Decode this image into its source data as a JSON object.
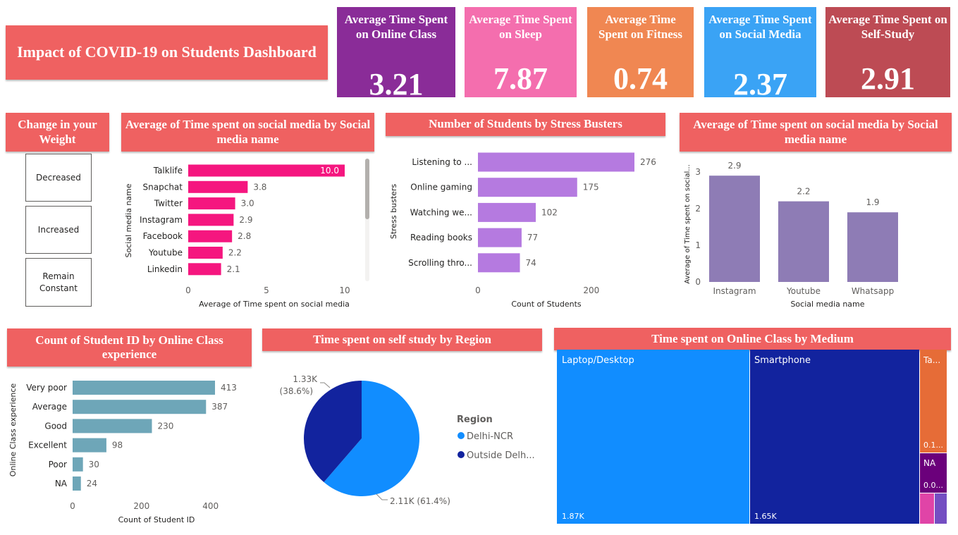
{
  "header": {
    "title": "Impact of COVID-19 on Students Dashboard"
  },
  "kpis": [
    {
      "label": "Average Time Spent on Online Class",
      "value": "3.21",
      "color": "#8a2c98"
    },
    {
      "label": "Average Time Spent on Sleep",
      "value": "7.87",
      "color": "#f46eae"
    },
    {
      "label": "Average Time Spent on Fitness",
      "value": "0.74",
      "color": "#f08752"
    },
    {
      "label": "Average Time Spent on Social Media",
      "value": "2.37",
      "color": "#3aa3f5"
    },
    {
      "label": "Average Time Spent on Self-Study",
      "value": "2.91",
      "color": "#bd4b54"
    }
  ],
  "weight_slicer": {
    "title": "Change in your Weight",
    "options": [
      "Decreased",
      "Increased",
      "Remain Constant"
    ]
  },
  "titles": {
    "social_h": "Average of Time spent on social media by Social media name",
    "stress": "Number of Students by Stress Busters",
    "social_v": "Average of Time spent on social media by Social media name",
    "online_exp": "Count of Student ID by Online Class experience",
    "self_study": "Time spent on self study by Region",
    "medium": "Time spent on Online Class by Medium"
  },
  "colors": {
    "title_bar": "#ef6161",
    "social_bar": "#f5167f",
    "stress_bar": "#b57ae0",
    "social_col": "#8e7cb5",
    "exp_bar": "#6ea6b8",
    "pie_delhi": "#118dff",
    "pie_outside": "#12239e",
    "tm_laptop": "#118dff",
    "tm_phone": "#12239e",
    "tm_tablet": "#e66c37",
    "tm_na": "#6b007b",
    "tm_pink": "#e044a7",
    "tm_purple": "#744ec2"
  },
  "chart_data": [
    {
      "id": "social_h",
      "type": "bar",
      "orientation": "horizontal",
      "title": "Average of Time spent on social media by Social media name",
      "categories": [
        "Talklife",
        "Snapchat",
        "Twitter",
        "Instagram",
        "Facebook",
        "Youtube",
        "Linkedin"
      ],
      "values": [
        10.0,
        3.8,
        3.0,
        2.9,
        2.8,
        2.2,
        2.1
      ],
      "data_labels": [
        "10.0",
        "3.8",
        "3.0",
        "2.9",
        "2.8",
        "2.2",
        "2.1"
      ],
      "xlabel": "Average of Time spent on social media",
      "ylabel": "Social media name",
      "xlim": [
        0,
        10
      ],
      "xticks": [
        "0",
        "5",
        "10"
      ]
    },
    {
      "id": "stress",
      "type": "bar",
      "orientation": "horizontal",
      "title": "Number of Students by Stress Busters",
      "categories": [
        "Listening to ...",
        "Online gaming",
        "Watching we...",
        "Reading books",
        "Scrolling thro..."
      ],
      "values": [
        276,
        175,
        102,
        77,
        74
      ],
      "data_labels": [
        "276",
        "175",
        "102",
        "77",
        "74"
      ],
      "xlabel": "Count of Students",
      "ylabel": "Stress busters",
      "xlim": [
        0,
        276
      ],
      "xticks": [
        "0",
        "200"
      ]
    },
    {
      "id": "social_v",
      "type": "bar",
      "orientation": "vertical",
      "title": "Average of Time spent on social media by Social media name",
      "categories": [
        "Instagram",
        "Youtube",
        "Whatsapp"
      ],
      "values": [
        2.9,
        2.2,
        1.9
      ],
      "data_labels": [
        "2.9",
        "2.2",
        "1.9"
      ],
      "xlabel": "Social media name",
      "ylabel": "Average of Time spent on social...",
      "ylim": [
        0,
        3
      ],
      "yticks": [
        "0",
        "1",
        "2",
        "3"
      ]
    },
    {
      "id": "online_exp",
      "type": "bar",
      "orientation": "horizontal",
      "title": "Count of Student ID by Online Class experience",
      "categories": [
        "Very poor",
        "Average",
        "Good",
        "Excellent",
        "Poor",
        "NA"
      ],
      "values": [
        413,
        387,
        230,
        98,
        30,
        24
      ],
      "data_labels": [
        "413",
        "387",
        "230",
        "98",
        "30",
        "24"
      ],
      "xlabel": "Count of Student ID",
      "ylabel": "Online Class experience",
      "xlim": [
        0,
        413
      ],
      "xticks": [
        "0",
        "200",
        "400"
      ]
    },
    {
      "id": "self_study",
      "type": "pie",
      "title": "Time spent on self study by Region",
      "legend_title": "Region",
      "legend_position": "right",
      "labels": [
        "Delhi-NCR",
        "Outside Delh..."
      ],
      "values": [
        2110,
        1330
      ],
      "percent": [
        61.4,
        38.6
      ],
      "data_labels": [
        "2.11K (61.4%)",
        "1.33K (38.6%)"
      ]
    },
    {
      "id": "medium",
      "type": "treemap",
      "title": "Time spent on Online Class by Medium",
      "items": [
        {
          "label": "Laptop/Desktop",
          "value_label": "1.87K"
        },
        {
          "label": "Smartphone",
          "value_label": "1.65K"
        },
        {
          "label": "Ta...",
          "value_label": "0.1..."
        },
        {
          "label": "NA",
          "value_label": "0.0..."
        }
      ]
    }
  ]
}
